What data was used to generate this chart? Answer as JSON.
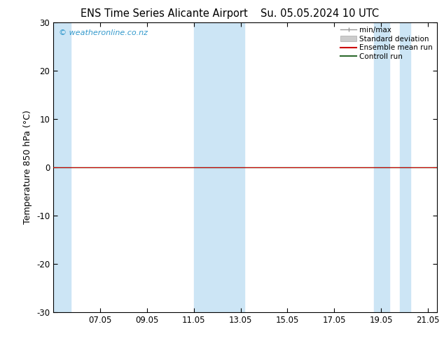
{
  "title_left": "ENS Time Series Alicante Airport",
  "title_right": "Su. 05.05.2024 10 UTC",
  "ylabel": "Temperature 850 hPa (°C)",
  "ylim": [
    -30,
    30
  ],
  "yticks": [
    -30,
    -20,
    -10,
    0,
    10,
    20,
    30
  ],
  "xlim_start": 5.0,
  "xlim_end": 21.4,
  "xtick_positions": [
    7,
    9,
    11,
    13,
    15,
    17,
    19,
    21
  ],
  "xtick_labels": [
    "07.05",
    "09.05",
    "11.05",
    "13.05",
    "15.05",
    "17.05",
    "19.05",
    "21.05"
  ],
  "shaded_bands": [
    [
      5.0,
      5.75
    ],
    [
      11.0,
      13.15
    ],
    [
      18.7,
      19.35
    ],
    [
      19.8,
      20.25
    ]
  ],
  "band_color": "#cce5f5",
  "control_run_color": "#2d6a2d",
  "ensemble_mean_color": "#cc0000",
  "minmax_color": "#999999",
  "stddev_color": "#cccccc",
  "watermark": "© weatheronline.co.nz",
  "watermark_color": "#3399cc",
  "bg_color": "#ffffff",
  "title_fontsize": 10.5,
  "axis_label_fontsize": 9,
  "tick_fontsize": 8.5,
  "legend_fontsize": 7.5
}
